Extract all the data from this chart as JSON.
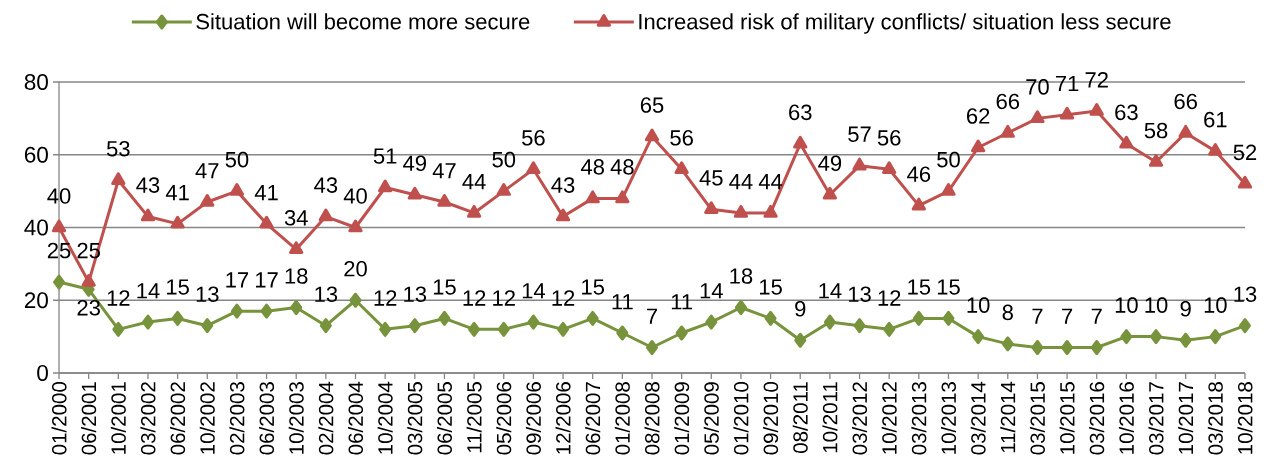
{
  "chart_data": {
    "type": "line",
    "categories": [
      "01/2000",
      "06/2001",
      "10/2001",
      "03/2002",
      "06/2002",
      "10/2002",
      "02/2003",
      "06/2003",
      "10/2003",
      "02/2004",
      "06/2004",
      "10/2004",
      "03/2005",
      "06/2005",
      "11/2005",
      "05/2006",
      "09/2006",
      "12/2006",
      "06/2007",
      "01/2008",
      "08/2008",
      "01/2009",
      "05/2009",
      "01/2010",
      "09/2010",
      "08/2011",
      "10/2011",
      "03/2012",
      "10/2012",
      "03/2013",
      "10/2013",
      "03/2014",
      "11/2014",
      "03/2015",
      "10/2015",
      "03/2016",
      "10/2016",
      "03/2017",
      "10/2017",
      "03/2018",
      "10/2018"
    ],
    "series": [
      {
        "name": "Situation will become more secure",
        "color": "#77933c",
        "marker": "diamond",
        "values": [
          25,
          23,
          12,
          14,
          15,
          13,
          17,
          17,
          18,
          13,
          20,
          12,
          13,
          15,
          12,
          12,
          14,
          12,
          15,
          11,
          7,
          11,
          14,
          18,
          15,
          9,
          14,
          13,
          12,
          15,
          15,
          10,
          8,
          7,
          7,
          7,
          10,
          10,
          9,
          10,
          13
        ]
      },
      {
        "name": "Increased risk of military conflicts/ situation less secure",
        "color": "#c0504d",
        "marker": "triangle",
        "values": [
          40,
          25,
          53,
          43,
          41,
          47,
          50,
          41,
          34,
          43,
          40,
          51,
          49,
          47,
          44,
          50,
          56,
          43,
          48,
          48,
          65,
          56,
          45,
          44,
          44,
          63,
          49,
          57,
          56,
          46,
          50,
          62,
          66,
          70,
          71,
          72,
          63,
          58,
          66,
          61,
          52
        ]
      }
    ],
    "ylim": [
      0,
      80
    ],
    "yticks": [
      0,
      20,
      40,
      60,
      80
    ],
    "grid": "y",
    "legend": "top",
    "data_labels": true,
    "line_style": "solid"
  }
}
